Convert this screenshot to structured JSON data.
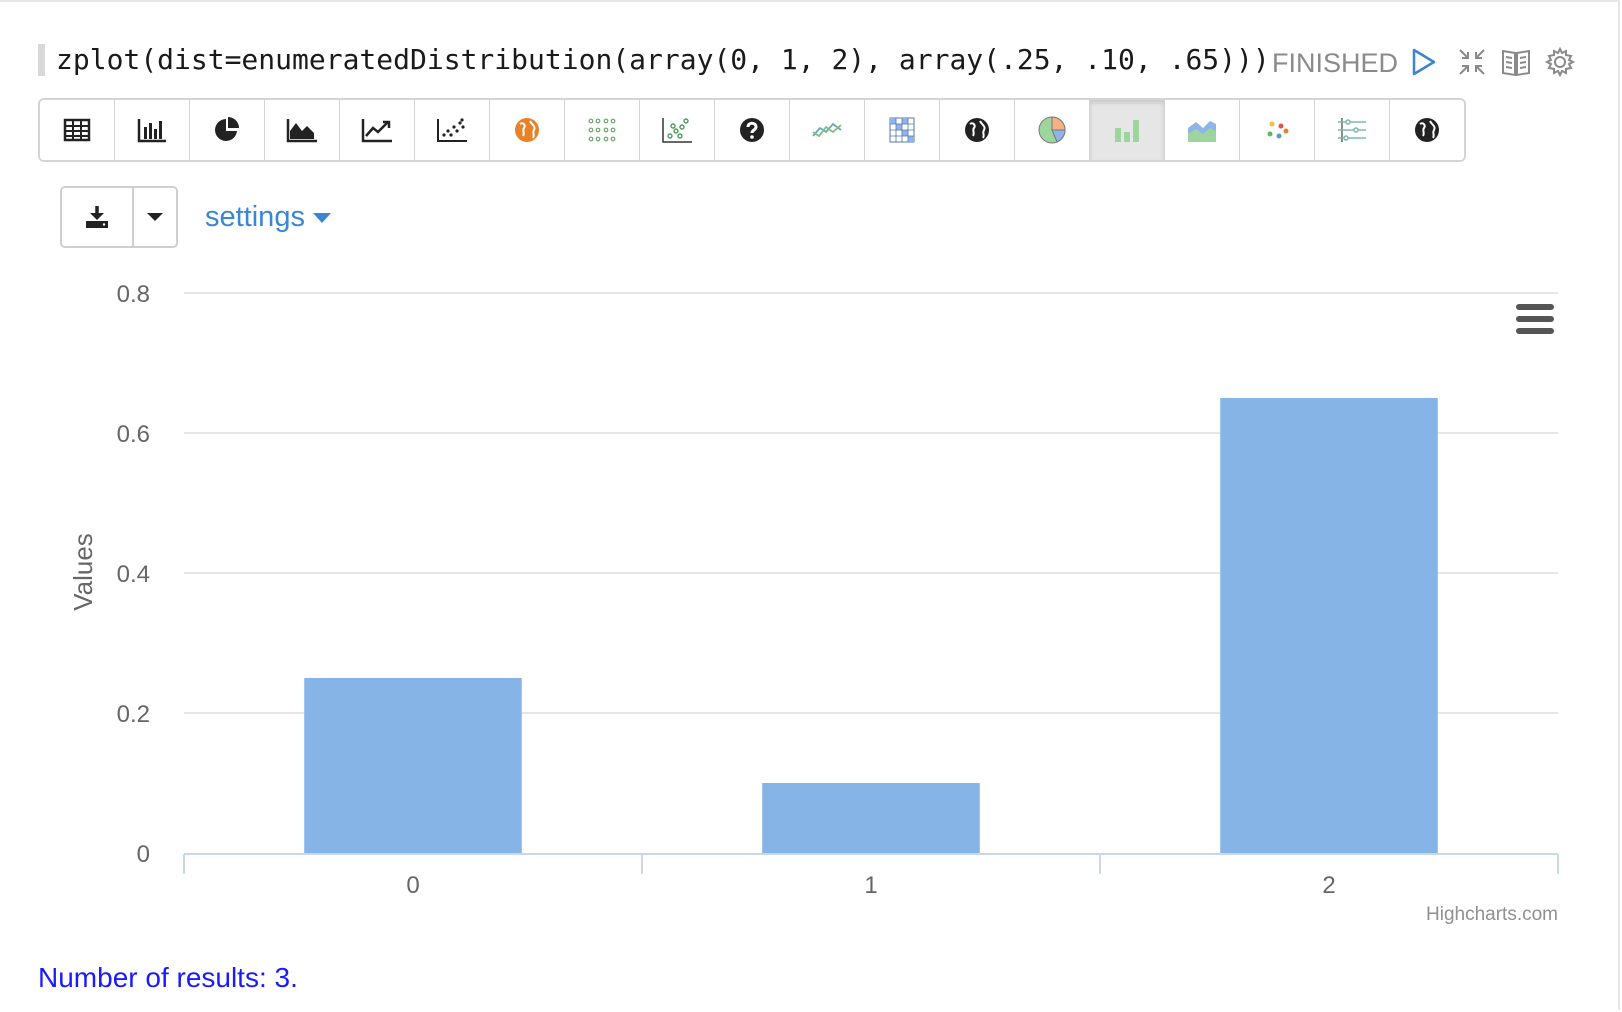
{
  "paragraph": {
    "code": "zplot(dist=enumeratedDistribution(array(0, 1, 2), array(.25, .10, .65)))",
    "status": "FINISHED"
  },
  "controls": [
    {
      "name": "run-icon"
    },
    {
      "name": "collapse-icon"
    },
    {
      "name": "book-icon"
    },
    {
      "name": "gear-icon"
    }
  ],
  "toolbar": {
    "buttons": [
      {
        "name": "table-icon"
      },
      {
        "name": "bar-chart-icon"
      },
      {
        "name": "pie-chart-icon"
      },
      {
        "name": "area-chart-icon"
      },
      {
        "name": "line-chart-icon"
      },
      {
        "name": "scatter-chart-icon"
      },
      {
        "name": "globe-orange-icon"
      },
      {
        "name": "dot-grid-icon"
      },
      {
        "name": "scatter-colored-icon"
      },
      {
        "name": "help-icon"
      },
      {
        "name": "multi-line-icon"
      },
      {
        "name": "heatmap-icon"
      },
      {
        "name": "globe-icon"
      },
      {
        "name": "pie-colored-icon"
      },
      {
        "name": "column-colored-icon",
        "active": true
      },
      {
        "name": "area-colored-icon"
      },
      {
        "name": "bubble-icon"
      },
      {
        "name": "parallel-coords-icon"
      },
      {
        "name": "globe-dark-icon"
      }
    ]
  },
  "download": {
    "icon": "download-icon",
    "caret_icon": "caret-down-icon"
  },
  "settings": {
    "label": "settings"
  },
  "chart_data": {
    "type": "bar",
    "categories": [
      "0",
      "1",
      "2"
    ],
    "values": [
      0.25,
      0.1,
      0.65
    ],
    "ylabel": "Values",
    "ylim": [
      0,
      0.8
    ],
    "yticks": [
      "0",
      "0.2",
      "0.4",
      "0.6",
      "0.8"
    ],
    "grid": true,
    "bar_color": "#87b4e6",
    "credits": "Highcharts.com",
    "menu_icon": "hamburger-menu-icon"
  },
  "footer": {
    "results": "Number of results: 3."
  }
}
